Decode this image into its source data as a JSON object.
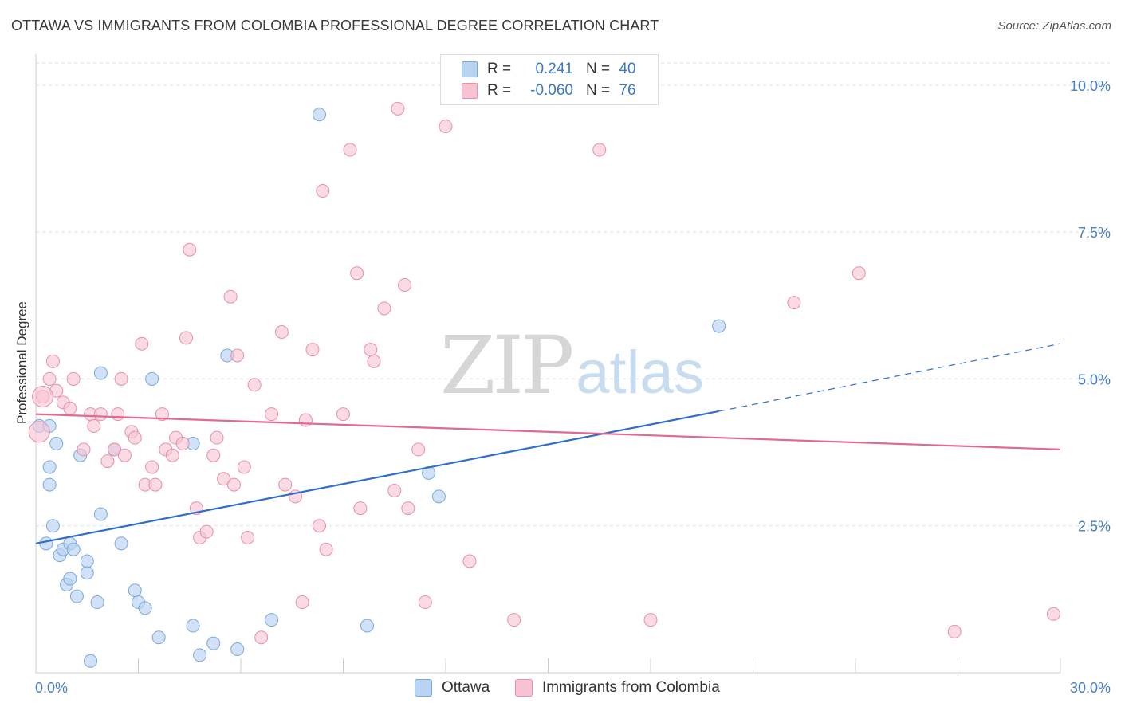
{
  "title": "OTTAWA VS IMMIGRANTS FROM COLOMBIA PROFESSIONAL DEGREE CORRELATION CHART",
  "source": "Source: ZipAtlas.com",
  "watermark": {
    "zip": "ZIP",
    "atlas": "atlas"
  },
  "legend": {
    "rows": [
      {
        "r_label": "R =",
        "r_value": "0.241",
        "n_label": "N =",
        "n_value": "40"
      },
      {
        "r_label": "R =",
        "r_value": "-0.060",
        "n_label": "N =",
        "n_value": "76"
      }
    ]
  },
  "colors": {
    "ottawa_fill": "#b9d3f2",
    "ottawa_stroke": "#7aa8dc",
    "ottawa_line": "#2f6fc9",
    "colombia_fill": "#f7c3d2",
    "colombia_stroke": "#e88fab",
    "colombia_line": "#e06a92",
    "tick_label": "#4a7fc4",
    "grid": "#dfdfdf"
  },
  "chart_data": {
    "type": "scatter",
    "title": "OTTAWA VS IMMIGRANTS FROM COLOMBIA PROFESSIONAL DEGREE CORRELATION CHART",
    "xlabel": "",
    "ylabel": "Professional Degree",
    "xlim": [
      0,
      30
    ],
    "ylim": [
      0,
      10.5
    ],
    "x_tick_labels": [
      "0.0%",
      "30.0%"
    ],
    "y_ticks": [
      {
        "value": 2.5,
        "label": "2.5%"
      },
      {
        "value": 5.0,
        "label": "5.0%"
      },
      {
        "value": 7.5,
        "label": "7.5%"
      },
      {
        "value": 10.0,
        "label": "10.0%"
      }
    ],
    "grid": "horizontal dashed",
    "legend_position": "top-center",
    "series": [
      {
        "name": "Ottawa",
        "r": 0.241,
        "n": 40,
        "trend": {
          "x0": 0,
          "y0": 2.2,
          "x_solid_end": 20.0,
          "y_solid_end": 4.45,
          "x_dash_end": 30.0,
          "y_dash_end": 5.6
        },
        "points": [
          [
            0.1,
            4.2
          ],
          [
            0.4,
            3.5
          ],
          [
            0.4,
            4.2
          ],
          [
            0.4,
            3.2
          ],
          [
            0.5,
            2.5
          ],
          [
            0.6,
            3.9
          ],
          [
            0.7,
            2.0
          ],
          [
            0.8,
            2.1
          ],
          [
            0.9,
            1.5
          ],
          [
            1.0,
            2.2
          ],
          [
            1.0,
            1.6
          ],
          [
            1.1,
            2.1
          ],
          [
            1.2,
            1.3
          ],
          [
            1.3,
            3.7
          ],
          [
            1.5,
            1.7
          ],
          [
            1.5,
            1.9
          ],
          [
            1.6,
            0.2
          ],
          [
            1.8,
            1.2
          ],
          [
            1.9,
            5.1
          ],
          [
            1.9,
            2.7
          ],
          [
            2.3,
            3.8
          ],
          [
            2.5,
            2.2
          ],
          [
            2.9,
            1.4
          ],
          [
            3.0,
            1.2
          ],
          [
            3.2,
            1.1
          ],
          [
            3.4,
            5.0
          ],
          [
            3.6,
            0.6
          ],
          [
            4.6,
            3.9
          ],
          [
            4.6,
            0.8
          ],
          [
            4.8,
            0.3
          ],
          [
            5.2,
            0.5
          ],
          [
            5.6,
            5.4
          ],
          [
            5.9,
            0.4
          ],
          [
            6.9,
            0.9
          ],
          [
            8.3,
            9.5
          ],
          [
            9.7,
            0.8
          ],
          [
            11.5,
            3.4
          ],
          [
            11.8,
            3.0
          ],
          [
            20.0,
            5.9
          ],
          [
            0.3,
            2.2
          ]
        ]
      },
      {
        "name": "Immigrants from Colombia",
        "r": -0.06,
        "n": 76,
        "trend": {
          "x0": 0,
          "y0": 4.4,
          "x1": 30.0,
          "y1": 3.8
        },
        "points": [
          [
            0.2,
            4.7
          ],
          [
            0.4,
            5.0
          ],
          [
            0.5,
            5.3
          ],
          [
            0.6,
            4.8
          ],
          [
            0.8,
            4.6
          ],
          [
            1.0,
            4.5
          ],
          [
            1.1,
            5.0
          ],
          [
            1.4,
            3.8
          ],
          [
            1.6,
            4.4
          ],
          [
            1.7,
            4.2
          ],
          [
            1.9,
            4.4
          ],
          [
            2.1,
            3.6
          ],
          [
            2.3,
            3.8
          ],
          [
            2.4,
            4.4
          ],
          [
            2.5,
            5.0
          ],
          [
            2.6,
            3.7
          ],
          [
            2.8,
            4.1
          ],
          [
            2.9,
            4.0
          ],
          [
            3.1,
            5.6
          ],
          [
            3.2,
            3.2
          ],
          [
            3.4,
            3.5
          ],
          [
            3.5,
            3.2
          ],
          [
            3.7,
            4.4
          ],
          [
            3.8,
            3.8
          ],
          [
            4.0,
            3.7
          ],
          [
            4.1,
            4.0
          ],
          [
            4.3,
            3.9
          ],
          [
            4.4,
            5.7
          ],
          [
            4.5,
            7.2
          ],
          [
            4.7,
            2.8
          ],
          [
            4.8,
            2.3
          ],
          [
            5.0,
            2.4
          ],
          [
            5.2,
            3.7
          ],
          [
            5.3,
            4.0
          ],
          [
            5.5,
            3.3
          ],
          [
            5.7,
            6.4
          ],
          [
            5.8,
            3.2
          ],
          [
            5.9,
            5.4
          ],
          [
            6.1,
            3.5
          ],
          [
            6.2,
            2.3
          ],
          [
            6.4,
            4.9
          ],
          [
            6.6,
            0.6
          ],
          [
            6.9,
            4.4
          ],
          [
            7.2,
            5.8
          ],
          [
            7.3,
            3.2
          ],
          [
            7.6,
            3.0
          ],
          [
            7.8,
            1.2
          ],
          [
            7.9,
            4.3
          ],
          [
            8.1,
            5.5
          ],
          [
            8.3,
            2.5
          ],
          [
            8.4,
            8.2
          ],
          [
            8.5,
            2.1
          ],
          [
            9.0,
            4.4
          ],
          [
            9.2,
            8.9
          ],
          [
            9.4,
            6.8
          ],
          [
            9.5,
            2.8
          ],
          [
            9.8,
            5.5
          ],
          [
            9.9,
            5.3
          ],
          [
            10.2,
            6.2
          ],
          [
            10.5,
            3.1
          ],
          [
            10.6,
            9.6
          ],
          [
            10.8,
            6.6
          ],
          [
            10.9,
            2.8
          ],
          [
            11.2,
            3.8
          ],
          [
            11.4,
            1.2
          ],
          [
            12.0,
            9.3
          ],
          [
            12.7,
            1.9
          ],
          [
            14.0,
            0.9
          ],
          [
            16.5,
            8.9
          ],
          [
            18.0,
            0.9
          ],
          [
            22.2,
            6.3
          ],
          [
            24.1,
            6.8
          ],
          [
            26.9,
            0.7
          ],
          [
            29.8,
            1.0
          ],
          [
            0.2,
            4.7
          ],
          [
            0.1,
            4.1
          ]
        ]
      }
    ]
  },
  "bottom_legend": [
    {
      "label": "Ottawa"
    },
    {
      "label": "Immigrants from Colombia"
    }
  ]
}
